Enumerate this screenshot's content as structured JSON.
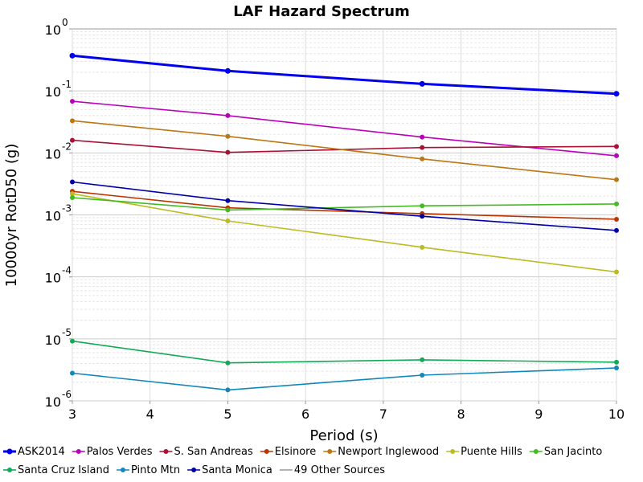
{
  "chart_data": {
    "type": "line",
    "title": "LAF Hazard Spectrum",
    "xlabel": "Period (s)",
    "ylabel": "10000yr RotD50 (g)",
    "xlim": [
      3,
      10
    ],
    "ylim": [
      1e-06,
      1
    ],
    "yscale": "log",
    "grid": true,
    "legend_position": "bottom",
    "x_ticks": [
      "3",
      "4",
      "5",
      "6",
      "7",
      "8",
      "9",
      "10"
    ],
    "y_ticks": [
      {
        "base": "10",
        "exp": "0"
      },
      {
        "base": "10",
        "exp": "-1"
      },
      {
        "base": "10",
        "exp": "-2"
      },
      {
        "base": "10",
        "exp": "-3"
      },
      {
        "base": "10",
        "exp": "-4"
      },
      {
        "base": "10",
        "exp": "-5"
      },
      {
        "base": "10",
        "exp": "-6"
      }
    ],
    "series": [
      {
        "name": "ASK2014",
        "color": "#0000ee",
        "width": 3,
        "x": [
          3,
          5,
          7.5,
          10
        ],
        "values": [
          0.37,
          0.21,
          0.13,
          0.09
        ]
      },
      {
        "name": "Palos Verdes",
        "color": "#bb00bb",
        "width": 1.6,
        "x": [
          3,
          5,
          7.5,
          10
        ],
        "values": [
          0.068,
          0.04,
          0.018,
          0.009
        ]
      },
      {
        "name": "S. San Andreas",
        "color": "#aa1133",
        "width": 1.6,
        "x": [
          3,
          5,
          7.5,
          10
        ],
        "values": [
          0.016,
          0.0102,
          0.0122,
          0.0127
        ]
      },
      {
        "name": "Elsinore",
        "color": "#bb3300",
        "width": 1.6,
        "x": [
          3,
          5,
          7.5,
          10
        ],
        "values": [
          0.0024,
          0.0013,
          0.00105,
          0.00085
        ]
      },
      {
        "name": "Newport Inglewood",
        "color": "#bb7711",
        "width": 1.6,
        "x": [
          3,
          5,
          7.5,
          10
        ],
        "values": [
          0.033,
          0.0185,
          0.008,
          0.0037
        ]
      },
      {
        "name": "Puente Hills",
        "color": "#bbbb22",
        "width": 1.6,
        "x": [
          3,
          5,
          7.5,
          10
        ],
        "values": [
          0.0022,
          0.0008,
          0.0003,
          0.00012
        ]
      },
      {
        "name": "San Jacinto",
        "color": "#44bb22",
        "width": 1.6,
        "x": [
          3,
          5,
          7.5,
          10
        ],
        "values": [
          0.0019,
          0.0012,
          0.0014,
          0.0015
        ]
      },
      {
        "name": "Santa Cruz Island",
        "color": "#11aa55",
        "width": 1.6,
        "x": [
          3,
          5,
          7.5,
          10
        ],
        "values": [
          9.2e-06,
          4.1e-06,
          4.6e-06,
          4.2e-06
        ]
      },
      {
        "name": "Pinto Mtn",
        "color": "#1188bb",
        "width": 1.6,
        "x": [
          3,
          5,
          7.5,
          10
        ],
        "values": [
          2.8e-06,
          1.5e-06,
          2.6e-06,
          3.4e-06
        ]
      },
      {
        "name": "Santa Monica",
        "color": "#0000aa",
        "width": 1.6,
        "x": [
          3,
          5,
          7.5,
          10
        ],
        "values": [
          0.0034,
          0.0017,
          0.00095,
          0.00056
        ]
      }
    ],
    "legend": [
      {
        "label": "ASK2014",
        "color": "#0000ee",
        "marker": true,
        "thick": true
      },
      {
        "label": "Palos Verdes",
        "color": "#bb00bb",
        "marker": true
      },
      {
        "label": "S. San Andreas",
        "color": "#aa1133",
        "marker": true
      },
      {
        "label": "Elsinore",
        "color": "#bb3300",
        "marker": true
      },
      {
        "label": "Newport Inglewood",
        "color": "#bb7711",
        "marker": true
      },
      {
        "label": "Puente Hills",
        "color": "#bbbb22",
        "marker": true
      },
      {
        "label": "San Jacinto",
        "color": "#44bb22",
        "marker": true
      },
      {
        "label": "Santa Cruz Island",
        "color": "#11aa55",
        "marker": true
      },
      {
        "label": "Pinto Mtn",
        "color": "#1188bb",
        "marker": true
      },
      {
        "label": "Santa Monica",
        "color": "#0000aa",
        "marker": true
      },
      {
        "label": "49 Other Sources",
        "color": "#999999",
        "marker": false
      }
    ]
  }
}
